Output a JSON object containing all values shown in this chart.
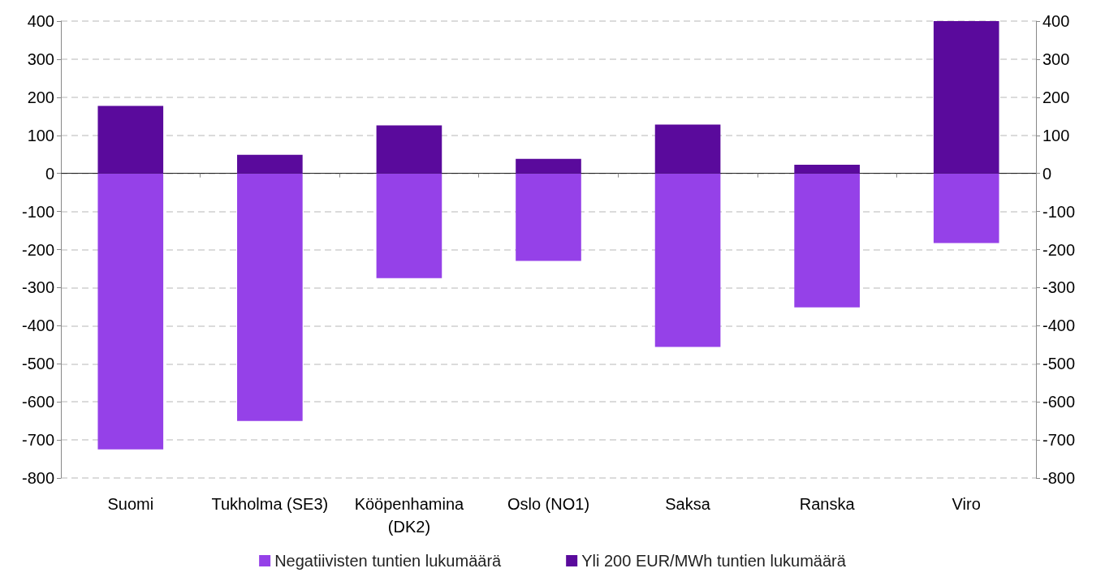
{
  "chart_data": {
    "type": "bar",
    "stacked": true,
    "categories": [
      "Suomi",
      "Tukholma (SE3)",
      "Kööpenhamina\n(DK2)",
      "Oslo (NO1)",
      "Saksa",
      "Ranska",
      "Viro"
    ],
    "series": [
      {
        "name": "Negatiivisten tuntien lukumäärä",
        "color": "#9541e8",
        "values": [
          -725,
          -650,
          -275,
          -230,
          -456,
          -352,
          -183
        ]
      },
      {
        "name": "Yli 200 EUR/MWh tuntien lukumäärä",
        "color": "#5a0a9c",
        "values": [
          177,
          49,
          126,
          38,
          128,
          23,
          400
        ]
      }
    ],
    "ylim": [
      -800,
      400
    ],
    "yticks": [
      -800,
      -700,
      -600,
      -500,
      -400,
      -300,
      -200,
      -100,
      0,
      100,
      200,
      300,
      400
    ],
    "y2lim": [
      -800,
      400
    ],
    "y2ticks": [
      -800,
      -700,
      -600,
      -500,
      -400,
      -300,
      -200,
      -100,
      0,
      100,
      200,
      300,
      400
    ],
    "grid": "y",
    "legend": "bottom"
  }
}
